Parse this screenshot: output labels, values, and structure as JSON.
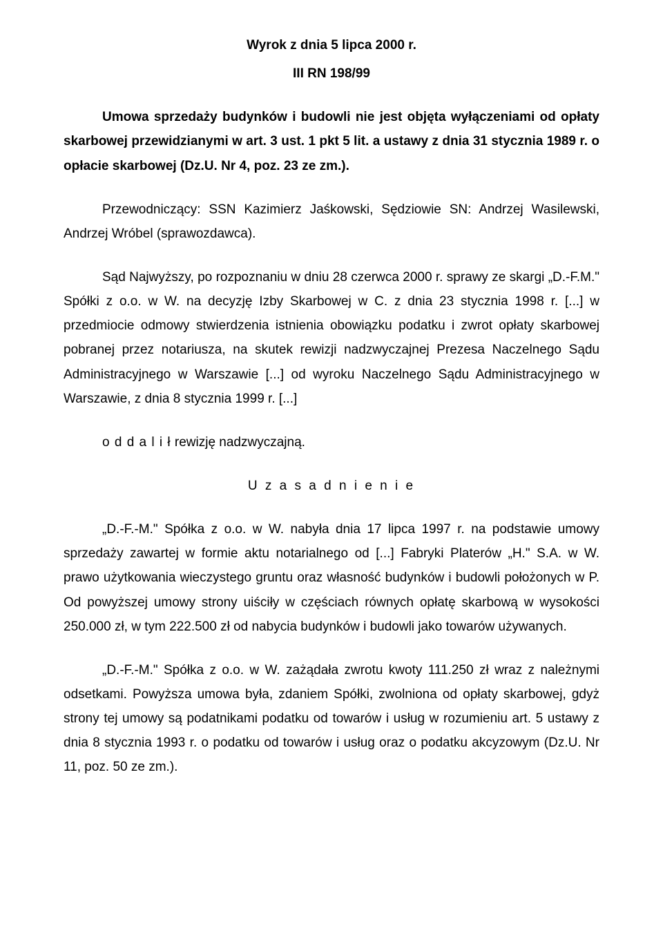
{
  "title": "Wyrok z dnia 5 lipca 2000 r.",
  "case_no": "III RN 198/99",
  "summary": "Umowa sprzedaży budynków i budowli nie jest objęta wyłączeniami od opłaty skarbowej przewidzianymi w art. 3 ust. 1 pkt 5 lit. a ustawy z dnia 31 stycznia 1989 r. o opłacie skarbowej (Dz.U. Nr 4, poz. 23 ze zm.).",
  "panel": "Przewodniczący: SSN Kazimierz Jaśkowski, Sędziowie SN: Andrzej Wasilewski, Andrzej Wróbel (sprawozdawca).",
  "body1": "Sąd Najwyższy, po rozpoznaniu w dniu 28 czerwca 2000 r. sprawy ze skargi „D.-F.M.\" Spółki z o.o. w W. na decyzję Izby Skarbowej w C. z dnia 23 stycznia 1998 r. [...] w przedmiocie odmowy stwierdzenia istnienia obowiązku podatku i zwrot opłaty skarbowej pobranej przez notariusza, na skutek rewizji nadzwyczajnej Prezesa Na­czelnego Sądu Administracyjnego w Warszawie [...] od wyroku Naczelnego Sądu Administracyjnego w Warszawie, z dnia 8 stycznia 1999 r. [...]",
  "ruling_prefix": "o d d a l i ł",
  "ruling_rest": "  rewizję nadzwyczajną.",
  "reasoning_heading": "U z a s a d n i e n i e",
  "reasoning_p1": "„D.-F.-M.\" Spółka z o.o. w W. nabyła dnia 17 lipca 1997 r. na podstawie umowy sprzedaży zawartej w formie aktu notarialnego od [...] Fabryki Platerów „H.\" S.A. w W. prawo użytkowania wieczystego gruntu oraz własność budynków i budowli położonych w P. Od powyższej umowy strony uiściły w częściach równych opłatę skarbową w wysokości 250.000 zł, w tym 222.500 zł od nabycia budynków i budowli jako towarów używanych.",
  "reasoning_p2": "„D.-F.-M.\" Spółka z o.o. w W. zażądała zwrotu kwoty 111.250 zł wraz z należ­nymi odsetkami. Powyższa umowa była, zdaniem Spółki, zwolniona od opłaty skar­bowej, gdyż strony tej umowy są podatnikami podatku od towarów i usług w rozu­mieniu art. 5 ustawy z dnia 8 stycznia 1993 r. o podatku od towarów i usług oraz o podatku akcyzowym (Dz.U. Nr 11, poz. 50 ze zm.)."
}
